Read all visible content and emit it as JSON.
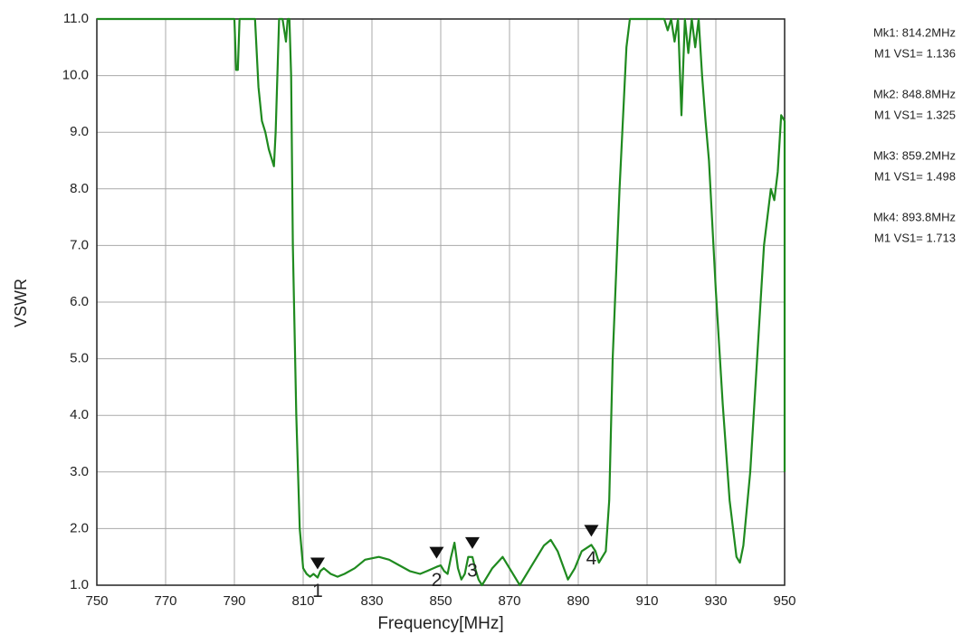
{
  "chart_data": {
    "type": "line",
    "xlabel": "Frequency[MHz]",
    "ylabel": "VSWR",
    "xlim": [
      750,
      950
    ],
    "ylim": [
      1,
      11
    ],
    "xticks": [
      750,
      770,
      790,
      810,
      830,
      850,
      870,
      890,
      910,
      930,
      950
    ],
    "yticks": [
      {
        "value": 1,
        "label": "1.0"
      },
      {
        "value": 2,
        "label": "2.0"
      },
      {
        "value": 3,
        "label": "3.0"
      },
      {
        "value": 4,
        "label": "4.0"
      },
      {
        "value": 5,
        "label": "5.0"
      },
      {
        "value": 6,
        "label": "6.0"
      },
      {
        "value": 7,
        "label": "7.0"
      },
      {
        "value": 8,
        "label": "8.0"
      },
      {
        "value": 9,
        "label": "9.0"
      },
      {
        "value": 10,
        "label": "10.0"
      },
      {
        "value": 11,
        "label": "11.0"
      }
    ],
    "grid": true,
    "series": [
      {
        "color": "#1f8a1f",
        "x": [
          750,
          790,
          790.5,
          791,
          791.5,
          792,
          796,
          797,
          798,
          799,
          800,
          801,
          801.5,
          802,
          803,
          804,
          805,
          805.5,
          806,
          806.5,
          807,
          808,
          809,
          810,
          811,
          812,
          813,
          814.2,
          815,
          816,
          818,
          820,
          822,
          825,
          828,
          832,
          835,
          838,
          841,
          844,
          846,
          848.8,
          850,
          851,
          852,
          853,
          854,
          855,
          856,
          857,
          858,
          859.2,
          860,
          861,
          862,
          863,
          865,
          868,
          870,
          873,
          876,
          878,
          880,
          882,
          884,
          887,
          889,
          891,
          893.8,
          895,
          896,
          897,
          898,
          899,
          900,
          902,
          904,
          905,
          915,
          916,
          917,
          918,
          919,
          920,
          921,
          922,
          923,
          924,
          925,
          926,
          927,
          928,
          930,
          932,
          934,
          935,
          936,
          937,
          938,
          940,
          942,
          944,
          945,
          946,
          947,
          948,
          949,
          950,
          950
        ],
        "values": [
          11,
          11,
          10.1,
          10.1,
          11,
          11,
          11,
          9.8,
          9.2,
          9.0,
          8.7,
          8.5,
          8.4,
          9.0,
          11,
          11,
          10.6,
          11,
          11,
          10,
          7,
          4,
          2,
          1.3,
          1.2,
          1.15,
          1.2,
          1.136,
          1.25,
          1.3,
          1.2,
          1.15,
          1.2,
          1.3,
          1.45,
          1.5,
          1.45,
          1.35,
          1.25,
          1.2,
          1.25,
          1.325,
          1.35,
          1.25,
          1.2,
          1.5,
          1.75,
          1.3,
          1.1,
          1.2,
          1.5,
          1.498,
          1.3,
          1.1,
          1.0,
          1.1,
          1.3,
          1.5,
          1.3,
          1.0,
          1.3,
          1.5,
          1.7,
          1.8,
          1.6,
          1.1,
          1.3,
          1.6,
          1.713,
          1.6,
          1.4,
          1.5,
          1.6,
          2.5,
          5,
          8,
          10.5,
          11,
          11,
          10.8,
          11,
          10.6,
          11,
          9.3,
          11,
          10.4,
          11,
          10.5,
          11,
          10,
          9.2,
          8.5,
          6.2,
          4.2,
          2.5,
          2,
          1.5,
          1.4,
          1.7,
          3,
          5,
          7,
          7.5,
          8,
          7.8,
          8.3,
          9.3,
          9.2,
          3.0
        ]
      }
    ],
    "markers": [
      {
        "label": "1",
        "x": 814.2,
        "y": 1.136,
        "freq_text": "Mk1:  814.2MHz",
        "vs_text": "M1 VS1= 1.136"
      },
      {
        "label": "2",
        "x": 848.8,
        "y": 1.325,
        "freq_text": "Mk2:  848.8MHz",
        "vs_text": "M1 VS1= 1.325"
      },
      {
        "label": "3",
        "x": 859.2,
        "y": 1.498,
        "freq_text": "Mk3:  859.2MHz",
        "vs_text": "M1 VS1= 1.498"
      },
      {
        "label": "4",
        "x": 893.8,
        "y": 1.713,
        "freq_text": "Mk4:  893.8MHz",
        "vs_text": "M1 VS1= 1.713"
      }
    ]
  }
}
